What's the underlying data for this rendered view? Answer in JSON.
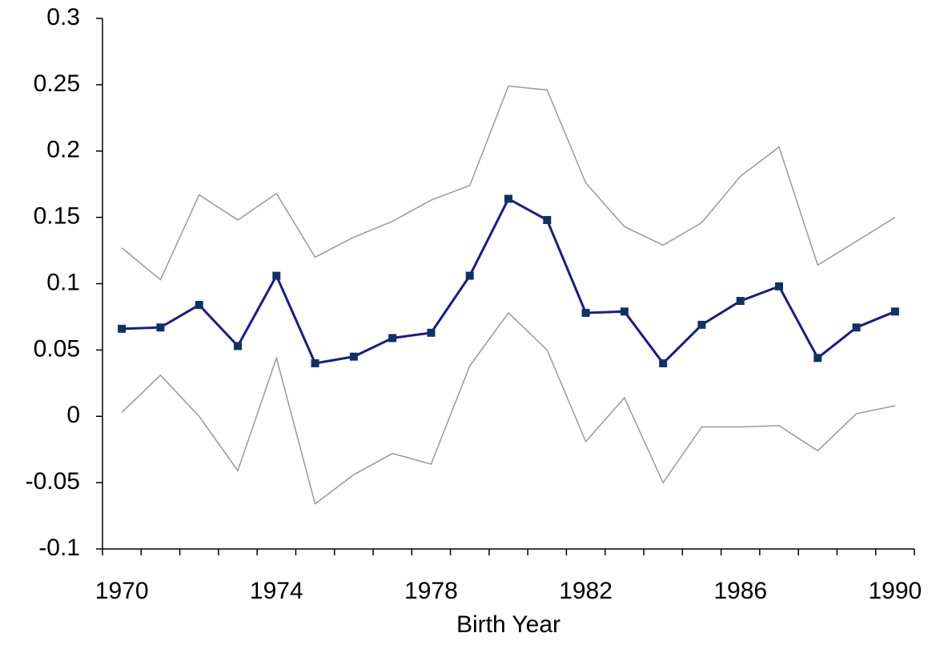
{
  "chart_data": {
    "type": "line",
    "x_label": "Birth Year",
    "categories": [
      "1970",
      null,
      null,
      null,
      "1974",
      null,
      null,
      null,
      "1978",
      null,
      null,
      null,
      "1982",
      null,
      null,
      null,
      "1986",
      null,
      null,
      null,
      "1990"
    ],
    "series": [
      {
        "color": "#999999",
        "values": [
          0.127,
          0.103,
          0.167,
          0.148,
          0.168,
          0.12,
          0.135,
          0.147,
          0.163,
          0.174,
          0.249,
          0.246,
          0.176,
          0.143,
          0.129,
          0.146,
          0.181,
          0.203,
          0.114,
          0.132,
          0.15
        ]
      },
      {
        "color": "#999999",
        "values": [
          0.003,
          0.031,
          0.0,
          -0.041,
          0.044,
          -0.066,
          -0.044,
          -0.028,
          -0.036,
          0.038,
          0.078,
          0.05,
          -0.019,
          0.014,
          -0.05,
          -0.008,
          -0.008,
          -0.007,
          -0.026,
          0.002,
          0.008
        ]
      },
      {
        "color": "#1a1a8c",
        "marker_color": "#0d3366",
        "values": [
          0.066,
          0.067,
          0.084,
          0.053,
          0.106,
          0.04,
          0.045,
          0.059,
          0.063,
          0.106,
          0.164,
          0.148,
          0.078,
          0.079,
          0.04,
          0.069,
          0.087,
          0.098,
          0.044,
          0.067,
          0.079
        ]
      }
    ],
    "ylim": [
      -0.1,
      0.3
    ],
    "yticks": [
      -0.1,
      -0.05,
      0,
      0.05,
      0.1,
      0.15,
      0.2,
      0.25,
      0.3
    ],
    "grid": false
  }
}
